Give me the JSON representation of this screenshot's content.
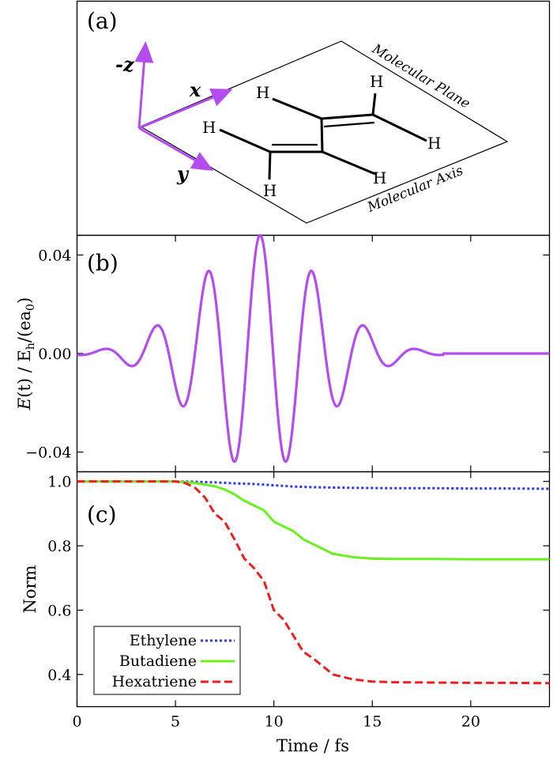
{
  "panels": {
    "a": {
      "label": "(a)",
      "axes": {
        "neg_z": "-z",
        "x": "x",
        "y": "y"
      },
      "atoms": [
        "H",
        "H",
        "H",
        "H",
        "H",
        "H"
      ],
      "plane_label": "Molecular Plane",
      "axis_label": "Molecular Axis"
    },
    "b": {
      "label": "(b)"
    },
    "c": {
      "label": "(c)"
    }
  },
  "colors": {
    "field": "#b44cf0",
    "ethylene": "#2a3bea",
    "butadiene": "#6cef22",
    "hexatriene": "#ef1e1e",
    "arrow": "#b44cf0"
  },
  "chart_data": [
    {
      "type": "line",
      "panel": "b",
      "ylabel_parts": {
        "func": "E",
        "arg": "(t)",
        "unit": "E",
        "unit_sub": "h",
        "unit_rest": "/(ea",
        "unit_sub2": "0",
        "close": ")",
        "sep": " / "
      },
      "xlim": [
        0,
        24
      ],
      "ylim": [
        -0.048,
        0.048
      ],
      "yticks": [
        -0.04,
        0.0,
        0.04
      ],
      "ytick_labels": [
        "−0.04",
        "0.00",
        "0.04"
      ],
      "field": {
        "center": 9.3,
        "amplitude": 0.048,
        "period": 2.65,
        "sigma": 3.1,
        "start": 0,
        "end": 18.6
      }
    },
    {
      "type": "line",
      "panel": "c",
      "xlabel": "Time / fs",
      "ylabel": "Norm",
      "xlim": [
        0,
        24
      ],
      "ylim": [
        0.3,
        1.03
      ],
      "xticks": [
        0,
        5,
        10,
        15,
        20
      ],
      "xtick_labels": [
        "0",
        "5",
        "10",
        "15",
        "20"
      ],
      "yticks": [
        0.4,
        0.6,
        0.8,
        1.0
      ],
      "ytick_labels": [
        "0.4",
        "0.6",
        "0.8",
        "1.0"
      ],
      "legend_position": "bottom-left",
      "series": [
        {
          "name": "Ethylene",
          "dash": "dotted",
          "x": [
            0,
            5,
            6,
            7,
            8,
            9,
            10,
            11,
            12,
            13,
            14,
            16,
            18,
            20,
            22,
            24
          ],
          "y": [
            1.0,
            1.0,
            0.999,
            0.997,
            0.994,
            0.992,
            0.988,
            0.984,
            0.982,
            0.981,
            0.98,
            0.979,
            0.979,
            0.978,
            0.978,
            0.977
          ]
        },
        {
          "name": "Butadiene",
          "dash": "solid",
          "x": [
            0,
            5,
            6,
            7,
            7.5,
            8,
            8.5,
            9,
            9.5,
            10,
            10.5,
            11,
            11.5,
            12,
            12.5,
            13,
            14,
            15,
            16,
            18,
            20,
            22,
            24
          ],
          "y": [
            1.0,
            1.0,
            0.995,
            0.985,
            0.975,
            0.96,
            0.94,
            0.925,
            0.91,
            0.875,
            0.86,
            0.845,
            0.82,
            0.805,
            0.79,
            0.775,
            0.765,
            0.76,
            0.759,
            0.759,
            0.758,
            0.758,
            0.758
          ]
        },
        {
          "name": "Hexatriene",
          "dash": "dashed",
          "x": [
            0,
            5,
            5.5,
            6,
            6.5,
            7,
            7.5,
            8,
            8.5,
            9,
            9.5,
            10,
            10.5,
            11,
            11.5,
            12,
            12.5,
            13,
            14,
            15,
            16,
            18,
            20,
            22,
            24
          ],
          "y": [
            1.0,
            1.0,
            0.995,
            0.98,
            0.95,
            0.9,
            0.875,
            0.82,
            0.76,
            0.73,
            0.69,
            0.6,
            0.57,
            0.52,
            0.47,
            0.45,
            0.425,
            0.4,
            0.385,
            0.378,
            0.376,
            0.375,
            0.374,
            0.374,
            0.373
          ]
        }
      ]
    }
  ]
}
